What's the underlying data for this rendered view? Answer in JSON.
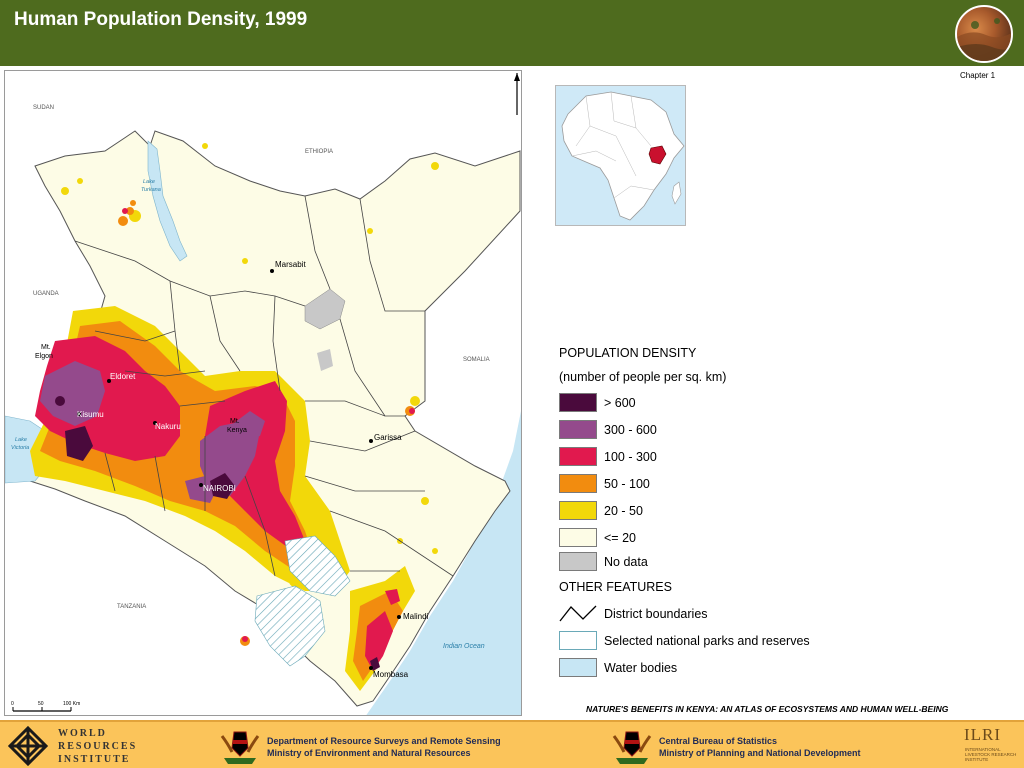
{
  "header": {
    "title": "Human Population Density, 1999",
    "chapter": "Chapter 1"
  },
  "map": {
    "labels": {
      "sudan": "SUDAN",
      "ethiopia": "ETHIOPIA",
      "uganda": "UGANDA",
      "somalia": "SOMALIA",
      "tanzania": "TANZANIA",
      "lake_turkana_1": "Lake",
      "lake_turkana_2": "Turkana",
      "lake_victoria_1": "Lake",
      "lake_victoria_2": "Victoria",
      "indian_ocean": "Indian Ocean",
      "marsabit": "Marsabit",
      "mt_elgon_1": "Mt.",
      "mt_elgon_2": "Elgon",
      "eldoret": "Eldoret",
      "kisumu": "Kisumu",
      "nakuru": "Nakuru",
      "mt_kenya_1": "Mt.",
      "mt_kenya_2": "Kenya",
      "nairobi": "NAIROBI",
      "garissa": "Garissa",
      "malindi": "Malindi",
      "mombasa": "Mombasa"
    },
    "scale_bar": {
      "tick_0": "0",
      "tick_50": "50",
      "tick_100": "100 Km"
    }
  },
  "legend": {
    "title": "POPULATION DENSITY",
    "subtitle": "(number of people per sq. km)",
    "classes": [
      {
        "label": "> 600",
        "color": "#4a0a3c"
      },
      {
        "label": "300 - 600",
        "color": "#944a8c"
      },
      {
        "label": "100 - 300",
        "color": "#e1194e"
      },
      {
        "label": "50 - 100",
        "color": "#f28c0f"
      },
      {
        "label": "20 - 50",
        "color": "#f2d80a"
      },
      {
        "label": "<= 20",
        "color": "#fdfce6"
      },
      {
        "label": "No data",
        "color": "#c8c8c8"
      }
    ],
    "other_title": "OTHER FEATURES",
    "other_features": [
      {
        "label": "District boundaries",
        "icon": "district-boundary-icon"
      },
      {
        "label": "Selected national parks and reserves",
        "icon": "park-reserve-swatch"
      },
      {
        "label": "Water bodies",
        "icon": "water-body-swatch"
      }
    ]
  },
  "caption": "NATURE'S BENEFITS IN KENYA: AN ATLAS OF ECOSYSTEMS AND HUMAN WELL-BEING",
  "footer": {
    "wri_line1": "WORLD",
    "wri_line2": "RESOURCES",
    "wri_line3": "INSTITUTE",
    "dept_line1": "Department of Resource Surveys and Remote Sensing",
    "dept_line2": "Ministry of Environment and Natural Resources",
    "cbs_line1": "Central Bureau of Statistics",
    "cbs_line2": "Ministry of Planning and National Development",
    "ilri_big": "ILRI",
    "ilri_small1": "INTERNATIONAL",
    "ilri_small2": "LIVESTOCK RESEARCH",
    "ilri_small3": "INSTITUTE"
  }
}
